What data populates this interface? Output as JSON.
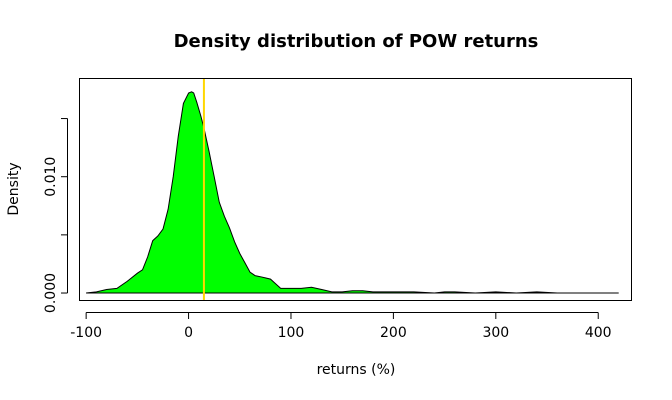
{
  "chart_data": {
    "type": "area",
    "title": "Density distribution of POW returns",
    "xlabel": "returns (%)",
    "ylabel": "Density",
    "xlim": [
      -106,
      432
    ],
    "ylim": [
      -0.0006,
      0.0184
    ],
    "x_ticks": [
      -100,
      0,
      100,
      200,
      300,
      400
    ],
    "y_ticks": [
      0.0,
      0.005,
      0.01,
      0.015
    ],
    "y_tick_labels": [
      "0.000",
      "",
      "0.010",
      ""
    ],
    "fill_color": "#00ff00",
    "vline": {
      "x": 15,
      "color": "#ffd700"
    },
    "x": [
      -100,
      -90,
      -80,
      -70,
      -60,
      -50,
      -45,
      -40,
      -35,
      -30,
      -25,
      -20,
      -15,
      -10,
      -5,
      0,
      3,
      5,
      8,
      12,
      15,
      20,
      25,
      30,
      35,
      40,
      45,
      50,
      55,
      60,
      65,
      70,
      75,
      80,
      85,
      90,
      100,
      110,
      120,
      130,
      140,
      150,
      160,
      170,
      180,
      200,
      220,
      240,
      250,
      260,
      280,
      300,
      320,
      340,
      360,
      380,
      400,
      420
    ],
    "density": [
      0.0,
      0.0001,
      0.0003,
      0.0004,
      0.001,
      0.0017,
      0.002,
      0.0031,
      0.0045,
      0.0049,
      0.0055,
      0.0072,
      0.01,
      0.0135,
      0.0163,
      0.0172,
      0.0173,
      0.0172,
      0.0164,
      0.0152,
      0.0142,
      0.0122,
      0.01,
      0.0078,
      0.0066,
      0.0056,
      0.0044,
      0.0034,
      0.0026,
      0.0018,
      0.0015,
      0.0014,
      0.0013,
      0.0012,
      0.0008,
      0.0004,
      0.0004,
      0.0004,
      0.0005,
      0.0003,
      0.0001,
      0.0001,
      0.0002,
      0.0002,
      0.0001,
      0.0001,
      0.0001,
      0.0,
      0.0001,
      0.0001,
      0.0,
      0.0001,
      0.0,
      0.0001,
      0.0,
      0.0,
      0.0,
      0.0
    ],
    "grid": false,
    "legend": "none"
  }
}
